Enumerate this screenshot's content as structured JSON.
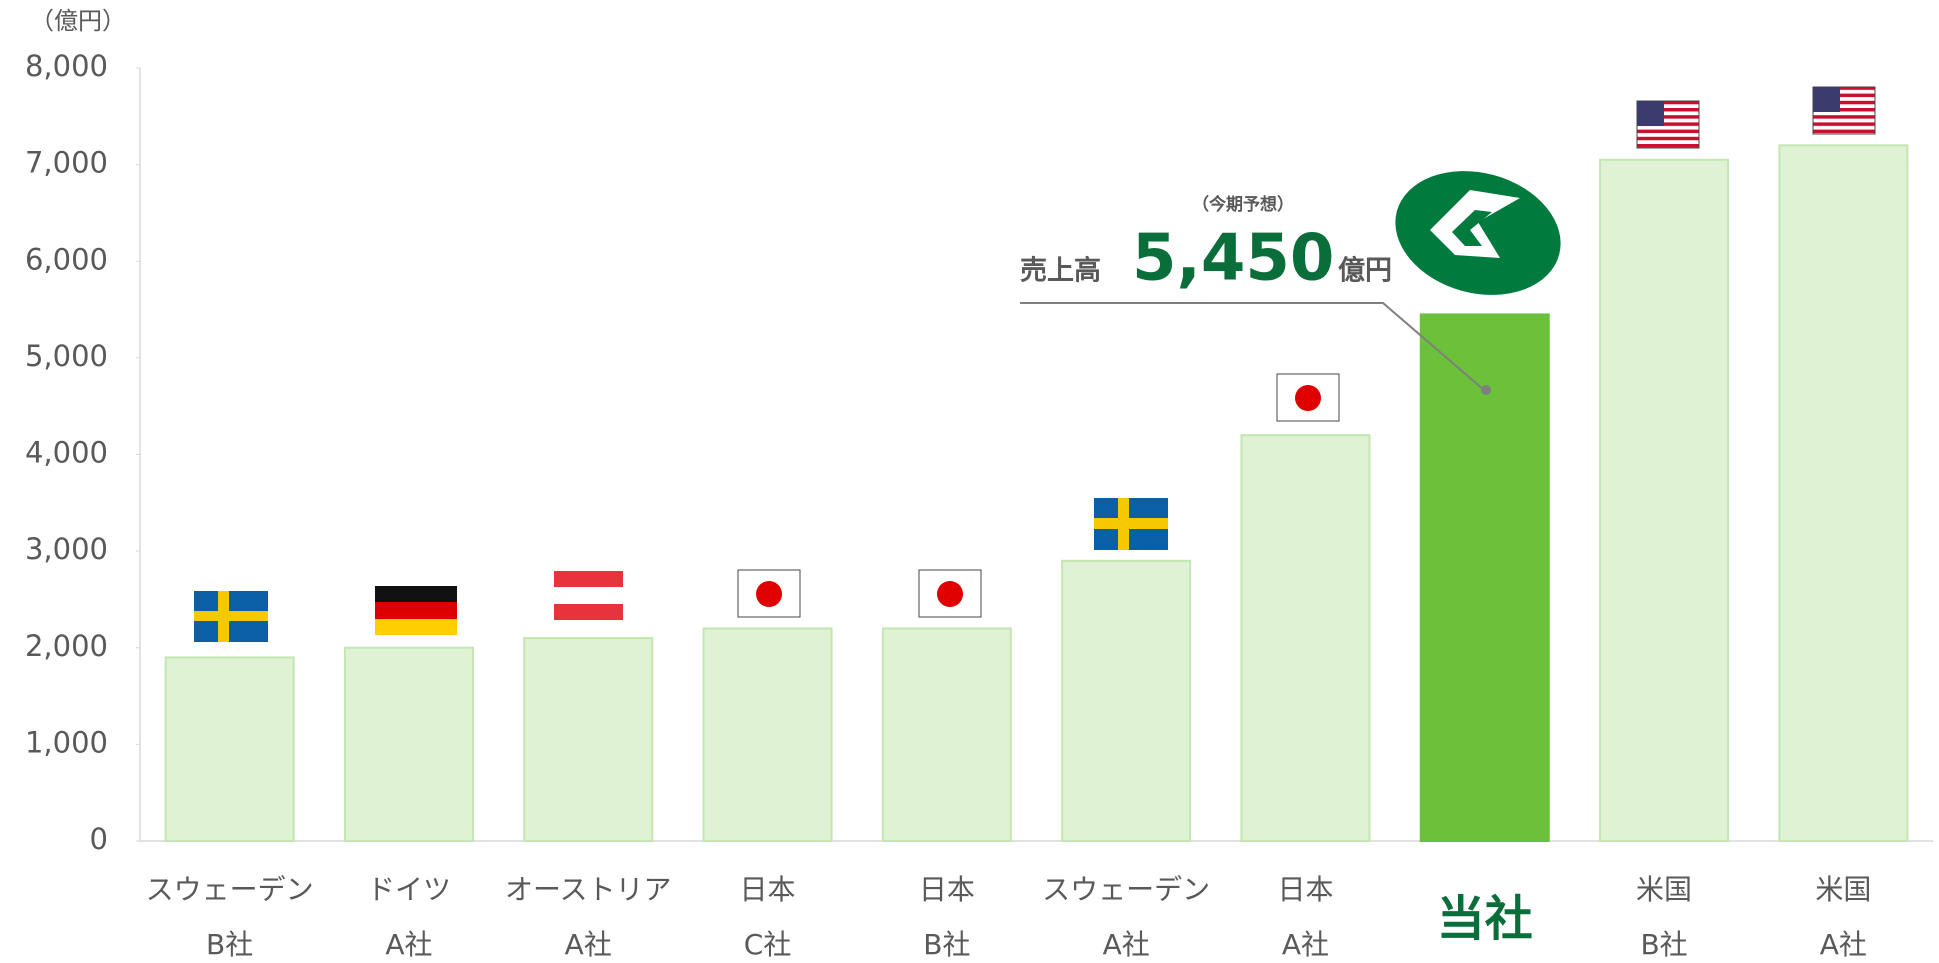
{
  "chart_data": {
    "type": "bar",
    "unit_label": "（億円）",
    "categories": [
      [
        "スウェーデン",
        "B社"
      ],
      [
        "ドイツ",
        "A社"
      ],
      [
        "オーストリア",
        "A社"
      ],
      [
        "日本",
        "C社"
      ],
      [
        "日本",
        "B社"
      ],
      [
        "スウェーデン",
        "A社"
      ],
      [
        "日本",
        "A社"
      ],
      [
        "当社"
      ],
      [
        "米国",
        "B社"
      ],
      [
        "米国",
        "A社"
      ]
    ],
    "values": [
      1900,
      2000,
      2100,
      2200,
      2200,
      2900,
      4200,
      5450,
      7050,
      7200
    ],
    "colors": [
      "#dff2d4",
      "#dff2d4",
      "#dff2d4",
      "#dff2d4",
      "#dff2d4",
      "#dff2d4",
      "#dff2d4",
      "#6cc13a",
      "#dff2d4",
      "#dff2d4"
    ],
    "ylim": [
      0,
      8000
    ],
    "yticks": [
      0,
      {
        "value": 1000,
        "label": "1,000"
      },
      {
        "value": 2000,
        "label": "2,000"
      },
      {
        "value": 3000,
        "label": "3,000"
      },
      {
        "value": 4000,
        "label": "4,000"
      },
      {
        "value": 5000,
        "label": "5,000"
      },
      {
        "value": 6000,
        "label": "6,000"
      },
      {
        "value": 7000,
        "label": "7,000"
      },
      {
        "value": 8000,
        "label": "8,000"
      }
    ],
    "grid": false,
    "annotation": {
      "note": "（今期予想）",
      "label": "売上高",
      "value": "5,450",
      "unit": "億円"
    }
  }
}
